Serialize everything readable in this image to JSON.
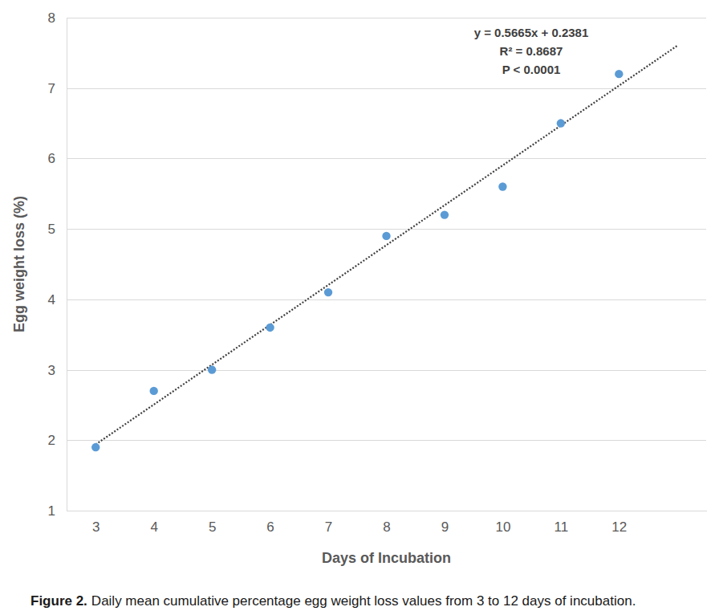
{
  "chart_data": {
    "type": "scatter",
    "title": "Figure 2.",
    "subtitle": "Daily mean cumulative percentage egg weight loss values from 3 to 12 days of incubation.",
    "x_label": "Days of Incubation",
    "y_label": "Egg weight loss (%)",
    "annotations": [
      "y = 0.5665x + 0.2381",
      "R² = 0.8687",
      "P < 0.0001"
    ],
    "xlim": [
      2.5,
      13.5
    ],
    "xticks": [
      3,
      4,
      5,
      6,
      7,
      8,
      9,
      10,
      11,
      12
    ],
    "ylim": [
      1,
      8
    ],
    "yticks": [
      1,
      2,
      3,
      4,
      5,
      6,
      7,
      8
    ],
    "grid": true,
    "series": [
      {
        "type": "scatter",
        "color": "#5b9bd5",
        "marker": "circle",
        "x": [
          3,
          4,
          5,
          6,
          7,
          8,
          9,
          10,
          11,
          12
        ],
        "values": [
          1.9,
          2.7,
          3.0,
          3.6,
          4.1,
          4.9,
          5.2,
          5.6,
          6.5,
          7.2
        ]
      },
      {
        "type": "line",
        "color": "#404040",
        "line_style": "dotted",
        "x": [
          3,
          13
        ],
        "values": [
          1.94,
          7.6
        ]
      }
    ]
  }
}
